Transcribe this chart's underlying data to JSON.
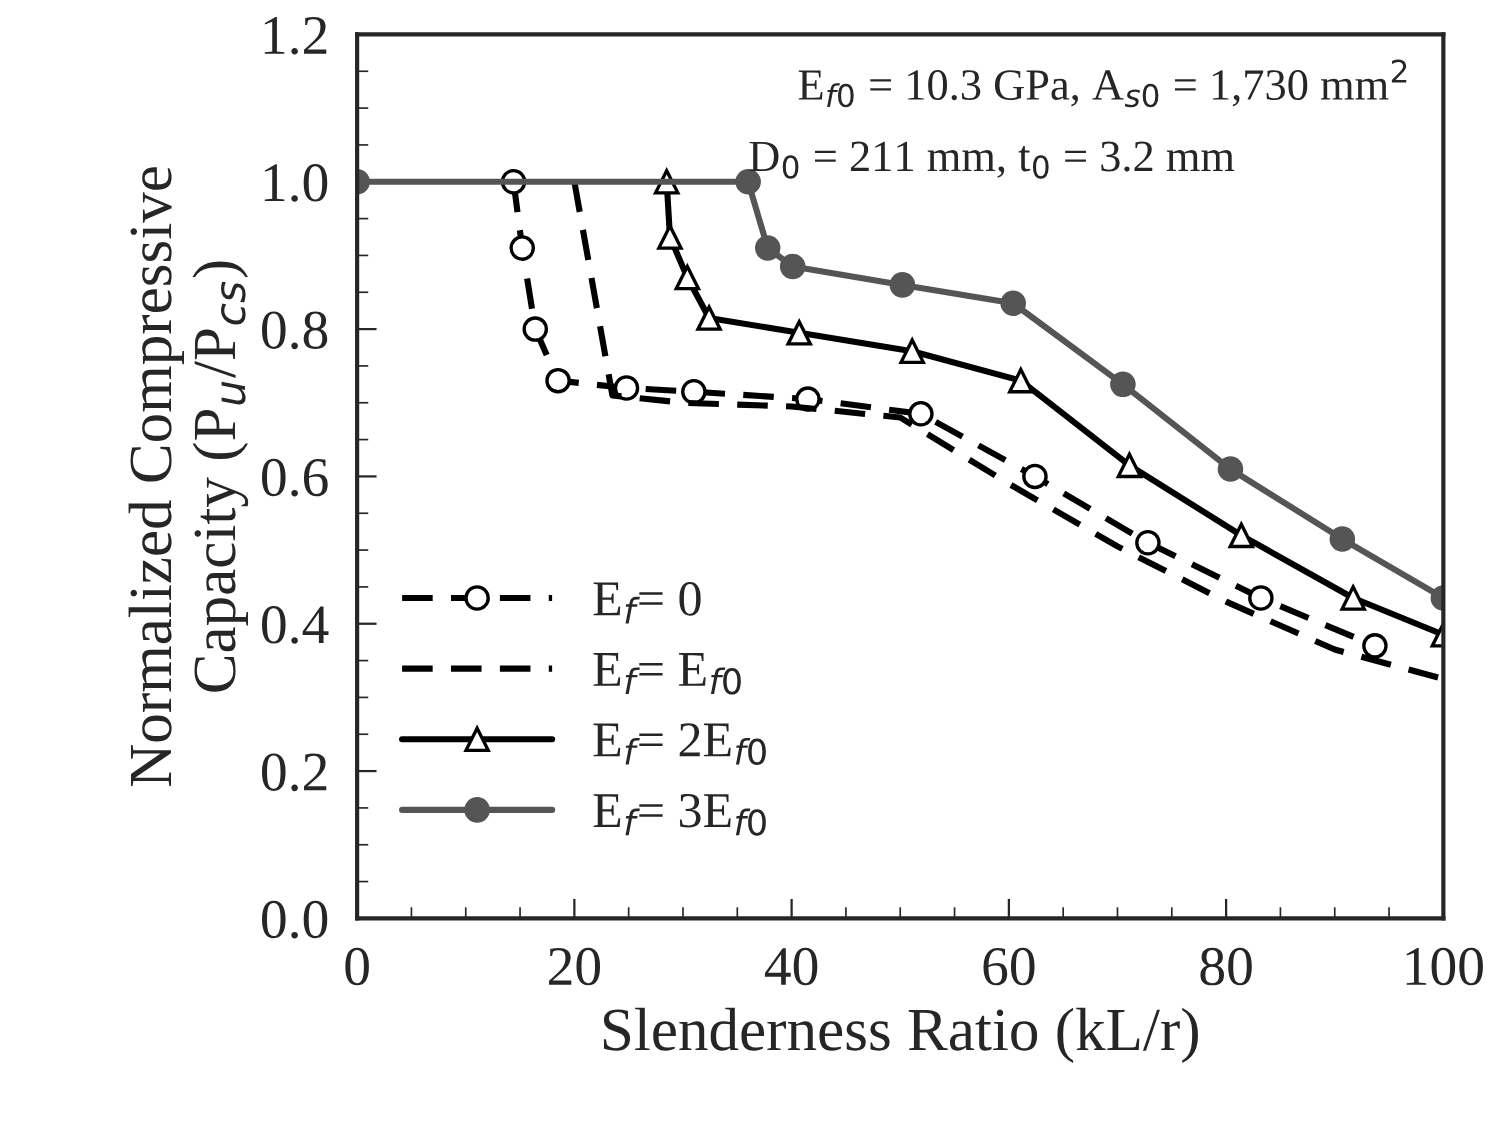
{
  "chart_data": {
    "type": "line",
    "xlabel": "Slenderness Ratio (kL/r)",
    "ylabel": "Normalized Compressive\nCapacity (P$_{u}$/P$_{cs}$)",
    "xlim": [
      0,
      100
    ],
    "xticks": [
      0,
      20,
      40,
      60,
      80,
      100
    ],
    "ylim": [
      0,
      1.2
    ],
    "yticks": [
      {
        "value": 0,
        "label": "0.0"
      },
      0.2,
      0.4,
      0.6,
      0.8,
      {
        "value": 1.0,
        "label": "1.0"
      },
      1.2
    ],
    "grid": false,
    "legend": "bottom left",
    "annotations": [
      "E$_{f0}$ = 10.3 GPa, A$_{s0}$ = 1,730 mm$^{2}$",
      "D$_{0}$ = 211 mm, t$_{0}$ = 3.2 mm"
    ],
    "series": [
      {
        "name": "E$_{f}$= 0",
        "color": "#000000",
        "marker": "circle",
        "line_style": "dashed",
        "x": [
          14.4,
          15.2,
          16.4,
          18.5,
          24.8,
          31.0,
          41.5,
          51.9,
          62.4,
          72.8,
          83.2,
          93.7
        ],
        "values": [
          1.0,
          0.91,
          0.8,
          0.73,
          0.72,
          0.715,
          0.705,
          0.685,
          0.6,
          0.51,
          0.435,
          0.37
        ]
      },
      {
        "name": "E$_{f}$= E$_{f0}$",
        "color": "#000000",
        "marker": "none",
        "line_style": "dashed",
        "x": [
          20,
          23.5,
          30,
          40,
          50,
          60,
          70,
          80,
          90,
          100
        ],
        "values": [
          1.0,
          0.71,
          0.7,
          0.695,
          0.68,
          0.59,
          0.505,
          0.43,
          0.365,
          0.325
        ]
      },
      {
        "name": "E$_{f}$= 2E$_{f0}$",
        "color": "#000000",
        "marker": "triangle",
        "line_style": "solid",
        "x": [
          28.5,
          28.8,
          30.4,
          32.4,
          40.7,
          51.1,
          61.1,
          71.1,
          81.4,
          91.7,
          100
        ],
        "values": [
          1.0,
          0.925,
          0.87,
          0.815,
          0.795,
          0.77,
          0.73,
          0.615,
          0.52,
          0.435,
          0.385
        ]
      },
      {
        "name": "E$_{f}$= 3E$_{f0}$",
        "color": "#555555",
        "marker": "circle",
        "line_style": "solid",
        "x": [
          0,
          36.0,
          37.8,
          40.1,
          50.2,
          60.4,
          70.5,
          80.4,
          90.7,
          100
        ],
        "values": [
          1.0,
          1.0,
          0.91,
          0.885,
          0.86,
          0.835,
          0.725,
          0.61,
          0.515,
          0.435
        ]
      }
    ]
  }
}
